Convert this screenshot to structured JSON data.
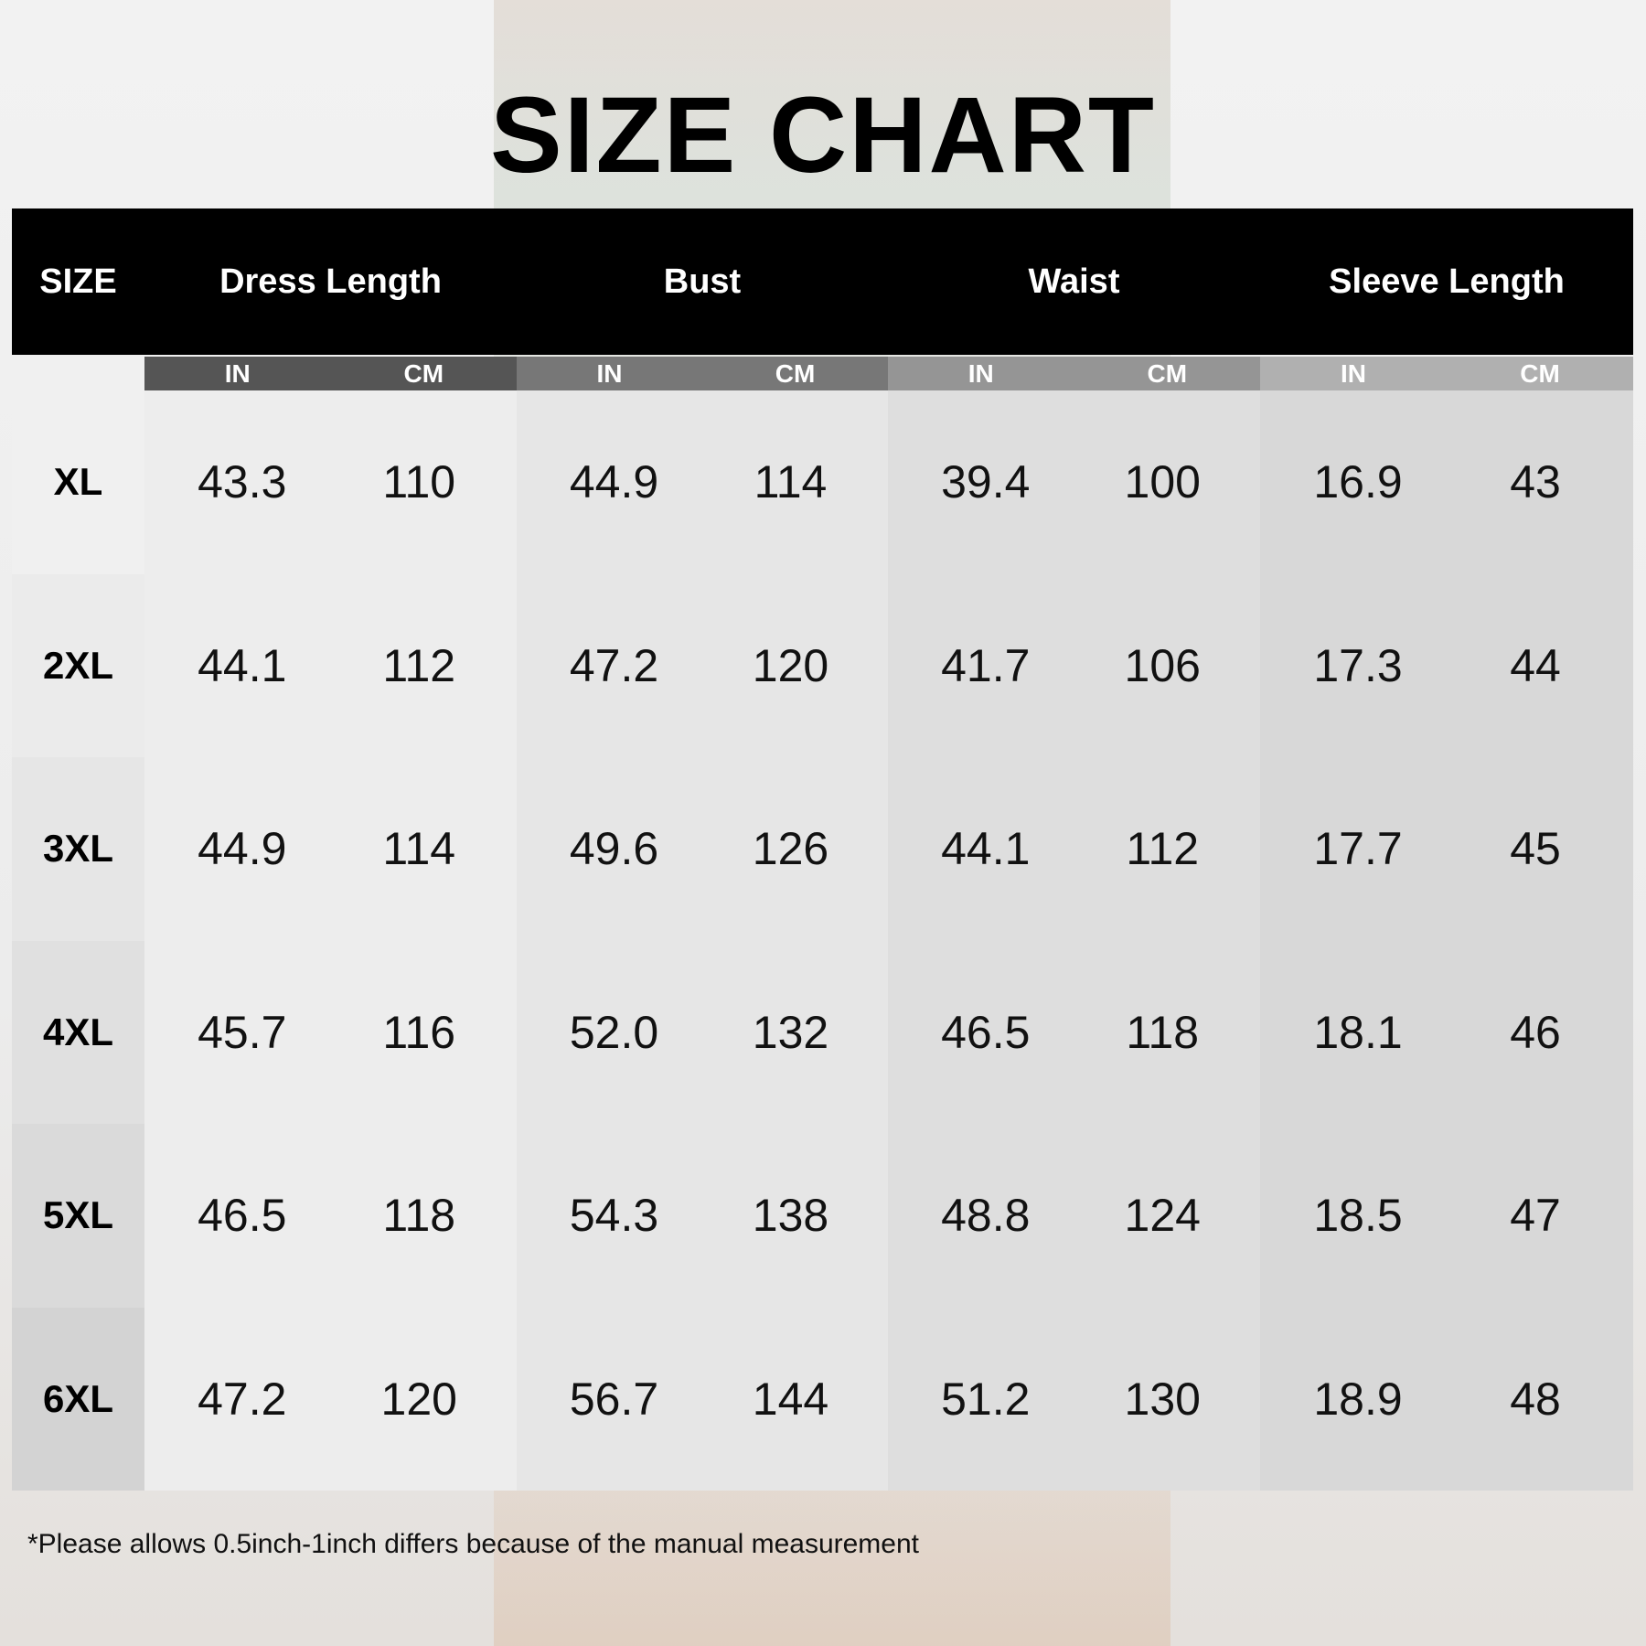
{
  "title": "SIZE CHART",
  "headers": [
    "SIZE",
    "Dress Length",
    "Bust",
    "Waist",
    "Sleeve Length"
  ],
  "units": [
    "IN",
    "CM"
  ],
  "colors": {
    "header_bg": "#000000",
    "sub_dress": "#555555",
    "sub_bust": "#777777",
    "sub_waist": "#959595",
    "sub_sleeve": "#b0b0b0"
  },
  "rows": [
    {
      "size": "XL",
      "values": [
        "43.3",
        "110",
        "44.9",
        "114",
        "39.4",
        "100",
        "16.9",
        "43"
      ]
    },
    {
      "size": "2XL",
      "values": [
        "44.1",
        "112",
        "47.2",
        "120",
        "41.7",
        "106",
        "17.3",
        "44"
      ]
    },
    {
      "size": "3XL",
      "values": [
        "44.9",
        "114",
        "49.6",
        "126",
        "44.1",
        "112",
        "17.7",
        "45"
      ]
    },
    {
      "size": "4XL",
      "values": [
        "45.7",
        "116",
        "52.0",
        "132",
        "46.5",
        "118",
        "18.1",
        "46"
      ]
    },
    {
      "size": "5XL",
      "values": [
        "46.5",
        "118",
        "54.3",
        "138",
        "48.8",
        "124",
        "18.5",
        "47"
      ]
    },
    {
      "size": "6XL",
      "values": [
        "47.2",
        "120",
        "56.7",
        "144",
        "51.2",
        "130",
        "18.9",
        "48"
      ]
    }
  ],
  "note": "*Please allows 0.5inch-1inch differs because of the manual measurement"
}
